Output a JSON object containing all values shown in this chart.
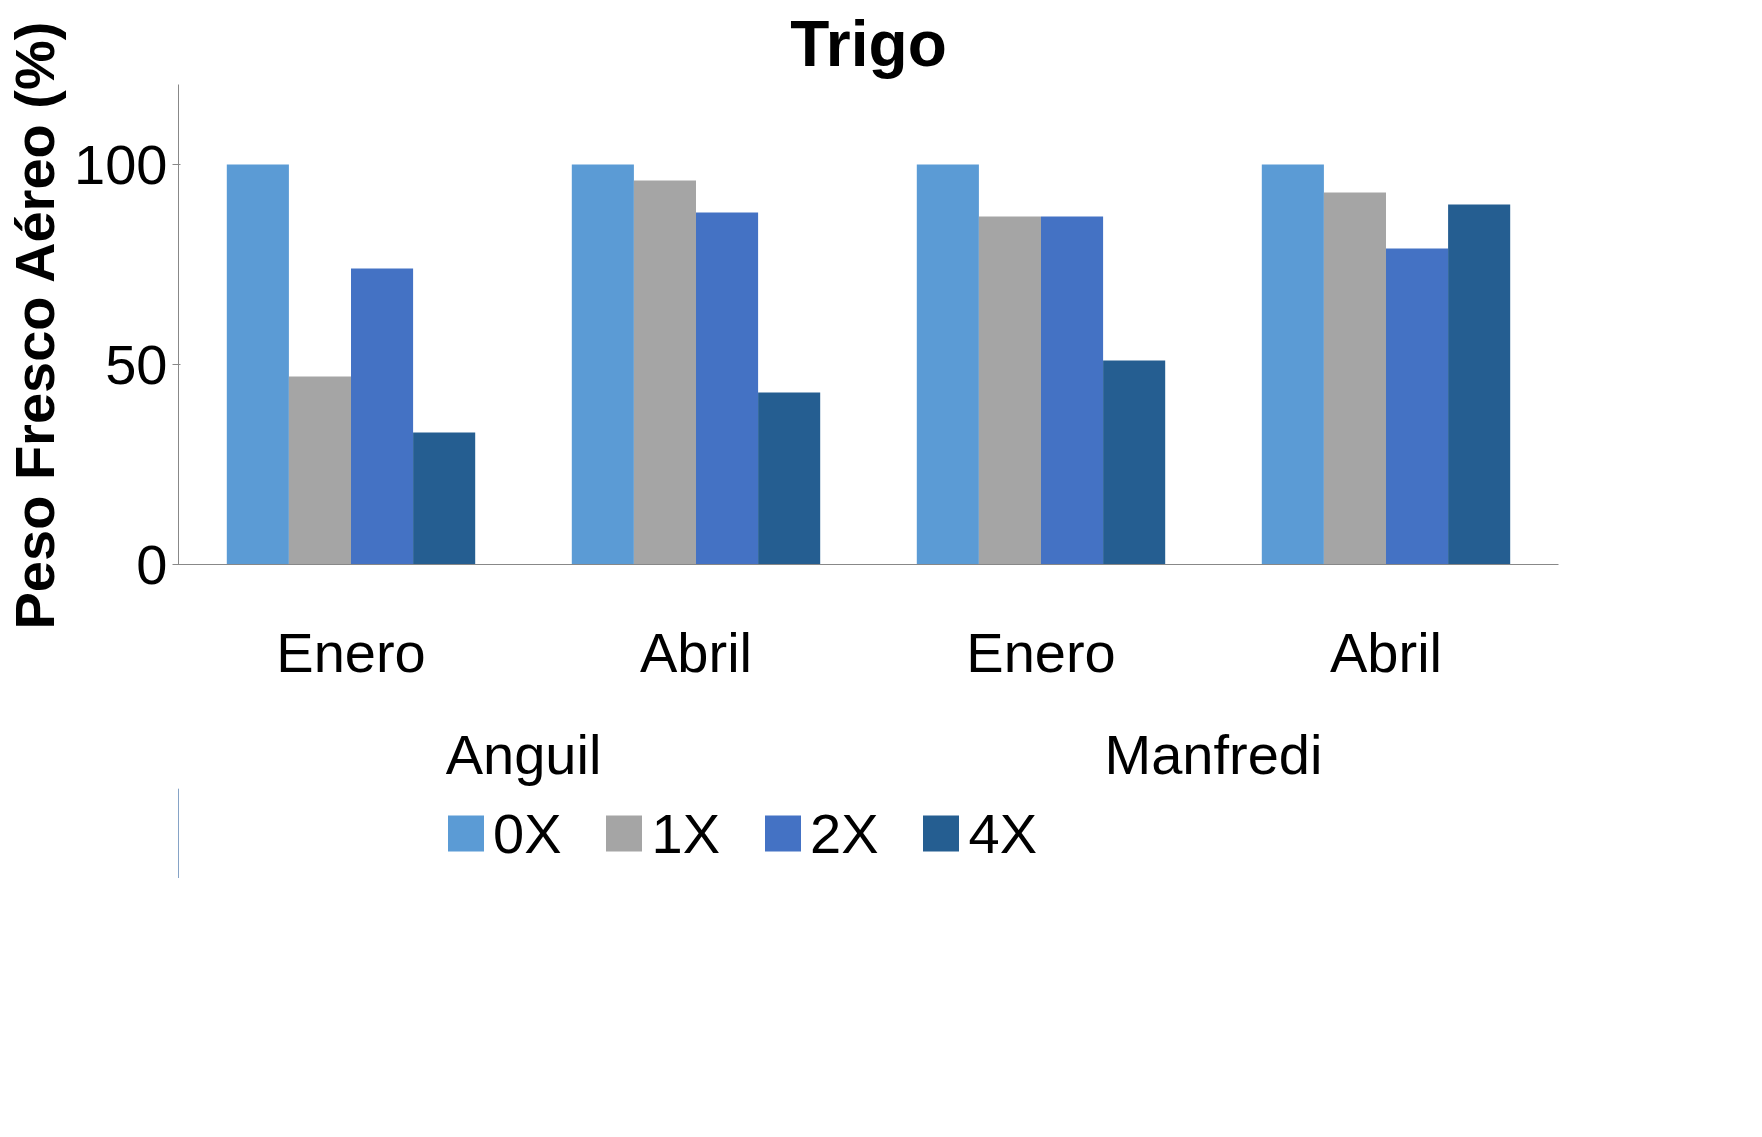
{
  "chart_data": {
    "type": "bar",
    "title": "Trigo",
    "ylabel": "Peso Fresco Aéreo (%)",
    "categories": [
      "Enero",
      "Abril",
      "Enero",
      "Abril"
    ],
    "annotations": [
      "Anguil",
      "Manfredi"
    ],
    "series": [
      {
        "name": "0X",
        "color": "#5b9bd5",
        "values": [
          100,
          100,
          100,
          100
        ]
      },
      {
        "name": "1X",
        "color": "#a5a5a5",
        "values": [
          47,
          96,
          87,
          93
        ]
      },
      {
        "name": "2X",
        "color": "#4472c4",
        "values": [
          74,
          88,
          87,
          79
        ]
      },
      {
        "name": "4X",
        "color": "#255e91",
        "values": [
          33,
          43,
          51,
          90
        ]
      }
    ],
    "ylim": [
      0,
      120
    ],
    "yticks": [
      0,
      50,
      100
    ],
    "grid": false,
    "legend": "bottom"
  }
}
